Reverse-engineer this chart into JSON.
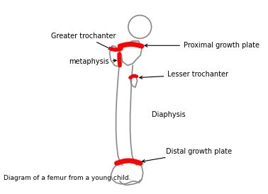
{
  "background_color": "#ffffff",
  "bone_outline_color": "#888888",
  "red_color": "#ff0000",
  "text_color": "#000000",
  "title_text": "Diagram of a femur from a young child.",
  "labels": {
    "greater_trochanter": "Greater trochanter",
    "proximal_growth_plate": "Proximal growth plate",
    "metaphysis": "metaphysis",
    "lesser_trochanter": "Lesser trochanter",
    "diaphysis": "Diaphysis",
    "distal_growth_plate": "Distal growth plate"
  },
  "figsize": [
    3.78,
    2.74
  ],
  "dpi": 100
}
